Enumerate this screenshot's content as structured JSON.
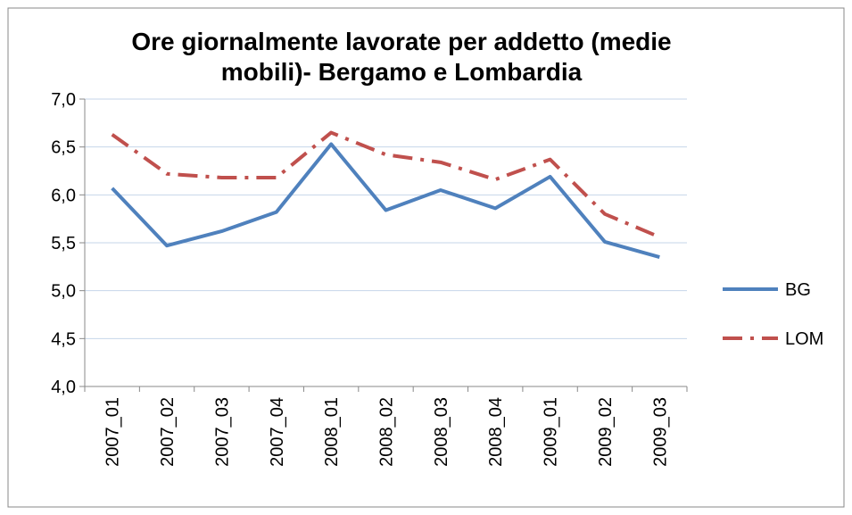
{
  "chart_data": {
    "type": "line",
    "title": "Ore giornalmente lavorate per addetto (medie mobili)- Bergamo e Lombardia",
    "categories": [
      "2007_01",
      "2007_02",
      "2007_03",
      "2007_04",
      "2008_01",
      "2008_02",
      "2008_03",
      "2008_04",
      "2009_01",
      "2009_02",
      "2009_03"
    ],
    "series": [
      {
        "name": "BG",
        "color": "#4f81bd",
        "dash": "solid",
        "values": [
          6.07,
          5.47,
          5.62,
          5.82,
          6.53,
          5.84,
          6.05,
          5.86,
          6.19,
          5.51,
          5.35
        ]
      },
      {
        "name": "LOM",
        "color": "#c0504d",
        "dash": "dash-dot",
        "values": [
          6.63,
          6.22,
          6.18,
          6.18,
          6.65,
          6.42,
          6.34,
          6.16,
          6.37,
          5.8,
          5.56
        ]
      }
    ],
    "ylim": [
      4,
      7
    ],
    "yticks": [
      {
        "value": 4,
        "label": "4,0"
      },
      {
        "value": 4.5,
        "label": "4,5"
      },
      {
        "value": 5,
        "label": "5,0"
      },
      {
        "value": 5.5,
        "label": "5,5"
      },
      {
        "value": 6,
        "label": "6,0"
      },
      {
        "value": 6.5,
        "label": "6,5"
      },
      {
        "value": 7,
        "label": "7,0"
      }
    ],
    "grid": true,
    "legend": "right"
  }
}
